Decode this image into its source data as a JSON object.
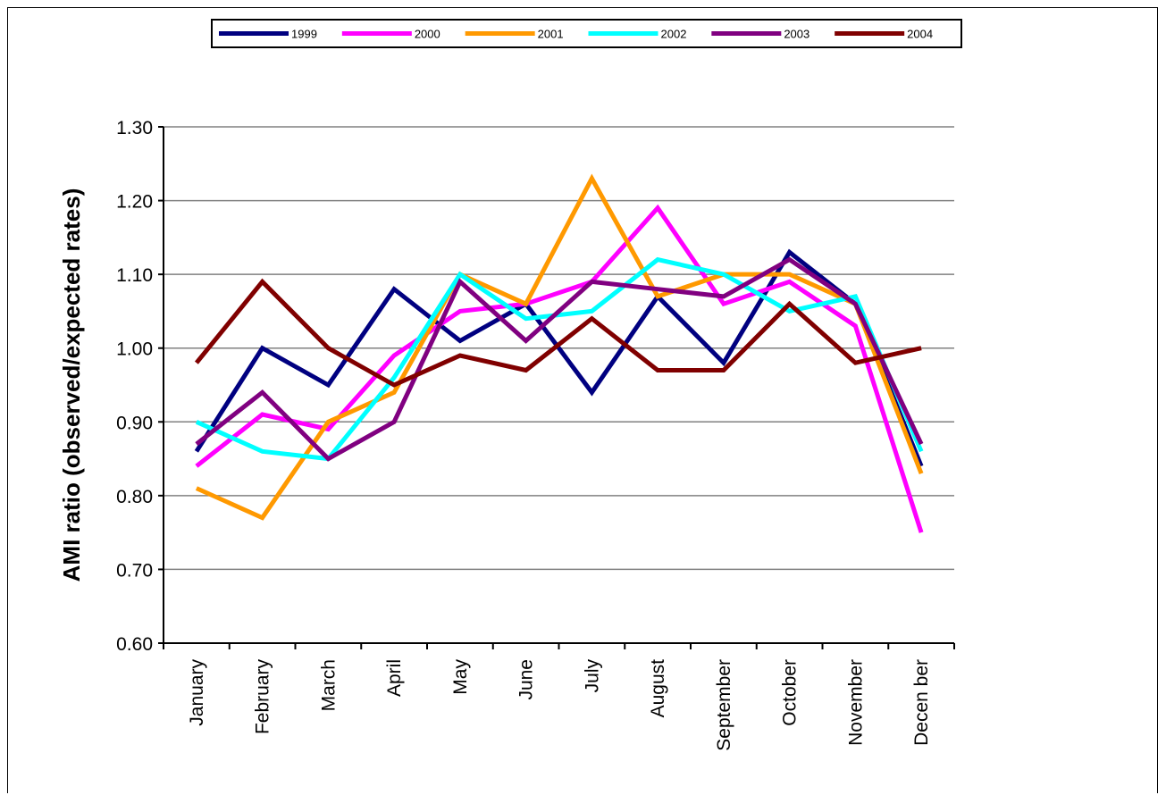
{
  "chart_data": {
    "type": "line",
    "title": "",
    "xlabel": "",
    "ylabel": "AMI ratio  (observed/expected rates)",
    "ylim": [
      0.6,
      1.3
    ],
    "yticks": [
      "0.60",
      "0.70",
      "0.80",
      "0.90",
      "1.00",
      "1.10",
      "1.20",
      "1.30"
    ],
    "ytick_values": [
      0.6,
      0.7,
      0.8,
      0.9,
      1.0,
      1.1,
      1.2,
      1.3
    ],
    "grid": true,
    "legend_position": "top",
    "categories": [
      "January",
      "February",
      "March",
      "April",
      "May",
      "June",
      "July",
      "August",
      "September",
      "October",
      "November",
      "December"
    ],
    "category_labels": [
      "January",
      "February",
      "March",
      "April",
      "May",
      "June",
      "July",
      "August",
      "September",
      "October",
      "November",
      "Decen ber"
    ],
    "series": [
      {
        "name": "1999",
        "color": "#000080",
        "values": [
          0.86,
          1.0,
          0.95,
          1.08,
          1.01,
          1.06,
          0.94,
          1.07,
          0.98,
          1.13,
          1.06,
          0.84
        ]
      },
      {
        "name": "2000",
        "color": "#ff00ff",
        "values": [
          0.84,
          0.91,
          0.89,
          0.99,
          1.05,
          1.06,
          1.09,
          1.19,
          1.06,
          1.09,
          1.03,
          0.75
        ]
      },
      {
        "name": "2001",
        "color": "#ff9900",
        "values": [
          0.81,
          0.77,
          0.9,
          0.94,
          1.1,
          1.06,
          1.23,
          1.07,
          1.1,
          1.1,
          1.06,
          0.83
        ]
      },
      {
        "name": "2002",
        "color": "#00ffff",
        "values": [
          0.9,
          0.86,
          0.85,
          0.96,
          1.1,
          1.04,
          1.05,
          1.12,
          1.1,
          1.05,
          1.07,
          0.86
        ]
      },
      {
        "name": "2003",
        "color": "#800080",
        "values": [
          0.87,
          0.94,
          0.85,
          0.9,
          1.09,
          1.01,
          1.09,
          1.08,
          1.07,
          1.12,
          1.06,
          0.87
        ]
      },
      {
        "name": "2004",
        "color": "#800000",
        "values": [
          0.98,
          1.09,
          1.0,
          0.95,
          0.99,
          0.97,
          1.04,
          0.97,
          0.97,
          1.06,
          0.98,
          1.0
        ]
      }
    ]
  }
}
